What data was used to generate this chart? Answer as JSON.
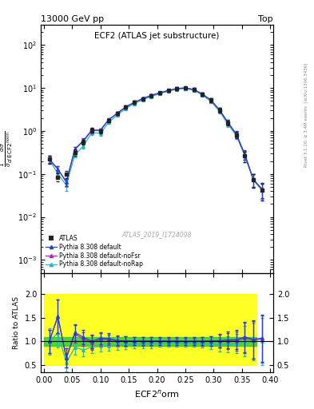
{
  "title_left": "13000 GeV pp",
  "title_right": "Top",
  "panel_title": "ECF2 (ATLAS jet substructure)",
  "xlabel": "ECF2$^n$orm",
  "ylabel_main_line1": "d",
  "ylabel_ratio": "Ratio to ATLAS",
  "watermark": "ATLAS_2019_I1724098",
  "right_label": "Rivet 3.1.10; ≥ 3.4M events  [arXiv:1306.3436]",
  "ylim_main": [
    0.0005,
    300
  ],
  "ylim_ratio": [
    0.35,
    2.45
  ],
  "xlim": [
    -0.005,
    0.405
  ],
  "x_atlas": [
    0.01,
    0.025,
    0.04,
    0.055,
    0.07,
    0.085,
    0.1,
    0.115,
    0.13,
    0.145,
    0.16,
    0.175,
    0.19,
    0.205,
    0.22,
    0.235,
    0.25,
    0.265,
    0.28,
    0.295,
    0.31,
    0.325,
    0.34,
    0.355,
    0.37,
    0.385
  ],
  "y_atlas": [
    0.22,
    0.085,
    0.1,
    0.32,
    0.55,
    1.05,
    0.98,
    1.75,
    2.55,
    3.6,
    4.6,
    5.65,
    6.7,
    7.7,
    8.7,
    9.7,
    10.0,
    9.2,
    7.2,
    5.2,
    3.1,
    1.55,
    0.82,
    0.26,
    0.072,
    0.042
  ],
  "y_atlas_err": [
    0.05,
    0.018,
    0.02,
    0.05,
    0.07,
    0.13,
    0.11,
    0.17,
    0.22,
    0.32,
    0.38,
    0.44,
    0.5,
    0.56,
    0.62,
    0.68,
    0.72,
    0.68,
    0.58,
    0.5,
    0.38,
    0.22,
    0.13,
    0.07,
    0.025,
    0.018
  ],
  "x_py_default": [
    0.01,
    0.025,
    0.04,
    0.055,
    0.07,
    0.085,
    0.1,
    0.115,
    0.13,
    0.145,
    0.16,
    0.175,
    0.19,
    0.205,
    0.22,
    0.235,
    0.25,
    0.265,
    0.28,
    0.295,
    0.31,
    0.325,
    0.34,
    0.355,
    0.37,
    0.385
  ],
  "y_py_default": [
    0.22,
    0.13,
    0.065,
    0.38,
    0.6,
    1.05,
    1.05,
    1.85,
    2.6,
    3.65,
    4.65,
    5.7,
    6.75,
    7.75,
    8.75,
    9.75,
    10.05,
    9.25,
    7.25,
    5.25,
    3.15,
    1.6,
    0.85,
    0.285,
    0.075,
    0.045
  ],
  "y_py_default_err": [
    0.04,
    0.02,
    0.012,
    0.05,
    0.07,
    0.13,
    0.11,
    0.17,
    0.22,
    0.32,
    0.38,
    0.44,
    0.5,
    0.56,
    0.62,
    0.68,
    0.72,
    0.68,
    0.58,
    0.5,
    0.38,
    0.22,
    0.13,
    0.07,
    0.025,
    0.018
  ],
  "x_py_noFsr": [
    0.01,
    0.025,
    0.04,
    0.055,
    0.07,
    0.085,
    0.1,
    0.115,
    0.13,
    0.145,
    0.16,
    0.175,
    0.19,
    0.205,
    0.22,
    0.235,
    0.25,
    0.265,
    0.28,
    0.295,
    0.31,
    0.325,
    0.34,
    0.355,
    0.37,
    0.385
  ],
  "y_py_noFsr": [
    0.22,
    0.13,
    0.065,
    0.37,
    0.58,
    1.02,
    1.02,
    1.82,
    2.57,
    3.62,
    4.62,
    5.67,
    6.72,
    7.72,
    8.72,
    9.72,
    10.02,
    9.22,
    7.22,
    5.22,
    3.12,
    1.57,
    0.83,
    0.28,
    0.074,
    0.044
  ],
  "y_py_noFsr_err": [
    0.04,
    0.02,
    0.012,
    0.05,
    0.07,
    0.13,
    0.11,
    0.17,
    0.22,
    0.32,
    0.38,
    0.44,
    0.5,
    0.56,
    0.62,
    0.68,
    0.72,
    0.68,
    0.58,
    0.5,
    0.38,
    0.22,
    0.13,
    0.07,
    0.025,
    0.018
  ],
  "x_py_noRap": [
    0.01,
    0.025,
    0.04,
    0.055,
    0.07,
    0.085,
    0.1,
    0.115,
    0.13,
    0.145,
    0.16,
    0.175,
    0.19,
    0.205,
    0.22,
    0.235,
    0.25,
    0.265,
    0.28,
    0.295,
    0.31,
    0.325,
    0.34,
    0.355,
    0.37,
    0.385
  ],
  "y_py_noRap": [
    0.22,
    0.1,
    0.055,
    0.28,
    0.45,
    0.92,
    0.88,
    1.6,
    2.35,
    3.35,
    4.35,
    5.35,
    6.35,
    7.4,
    8.4,
    9.4,
    9.7,
    8.9,
    6.9,
    4.9,
    2.9,
    1.45,
    0.78,
    0.26,
    0.072,
    0.042
  ],
  "y_py_noRap_err": [
    0.05,
    0.018,
    0.014,
    0.04,
    0.06,
    0.12,
    0.1,
    0.16,
    0.22,
    0.32,
    0.38,
    0.44,
    0.5,
    0.56,
    0.62,
    0.68,
    0.72,
    0.68,
    0.58,
    0.5,
    0.38,
    0.22,
    0.13,
    0.07,
    0.025,
    0.018
  ],
  "color_atlas": "#222222",
  "color_py_default": "#2244cc",
  "color_py_noFsr": "#bb22bb",
  "color_py_noRap": "#22bbbb",
  "ratio_default": [
    1.0,
    1.53,
    0.65,
    1.19,
    1.09,
    1.0,
    1.07,
    1.06,
    1.02,
    1.01,
    1.01,
    1.01,
    1.01,
    1.01,
    1.01,
    1.01,
    1.005,
    1.005,
    1.007,
    1.01,
    1.016,
    1.032,
    1.037,
    1.096,
    1.042,
    1.071
  ],
  "ratio_default_err": [
    0.25,
    0.35,
    0.2,
    0.18,
    0.15,
    0.15,
    0.13,
    0.11,
    0.1,
    0.1,
    0.09,
    0.09,
    0.09,
    0.08,
    0.08,
    0.08,
    0.08,
    0.08,
    0.09,
    0.1,
    0.14,
    0.17,
    0.2,
    0.32,
    0.4,
    0.5
  ],
  "ratio_noFsr": [
    1.0,
    1.53,
    0.65,
    1.16,
    1.05,
    0.97,
    1.04,
    1.04,
    1.008,
    1.006,
    1.005,
    1.004,
    1.003,
    1.003,
    1.002,
    1.002,
    1.002,
    1.002,
    1.003,
    1.004,
    1.006,
    1.013,
    1.012,
    1.077,
    1.028,
    1.048
  ],
  "ratio_noFsr_err": [
    0.25,
    0.35,
    0.2,
    0.18,
    0.15,
    0.15,
    0.13,
    0.11,
    0.1,
    0.1,
    0.09,
    0.09,
    0.09,
    0.08,
    0.08,
    0.08,
    0.08,
    0.08,
    0.09,
    0.1,
    0.14,
    0.17,
    0.2,
    0.32,
    0.4,
    0.5
  ],
  "ratio_noRap": [
    1.0,
    1.18,
    0.55,
    0.88,
    0.82,
    0.88,
    0.9,
    0.91,
    0.92,
    0.93,
    0.944,
    0.947,
    0.948,
    0.961,
    0.966,
    0.969,
    0.97,
    0.967,
    0.958,
    0.942,
    0.935,
    0.935,
    0.951,
    1.0,
    1.0,
    1.0
  ],
  "ratio_noRap_err": [
    0.28,
    0.3,
    0.18,
    0.16,
    0.13,
    0.13,
    0.12,
    0.11,
    0.1,
    0.1,
    0.09,
    0.09,
    0.09,
    0.08,
    0.08,
    0.08,
    0.08,
    0.08,
    0.09,
    0.1,
    0.14,
    0.17,
    0.2,
    0.32,
    0.4,
    0.5
  ],
  "band_x_edges": [
    0.0,
    0.015,
    0.03,
    0.045,
    0.06,
    0.075,
    0.09,
    0.105,
    0.12,
    0.135,
    0.15,
    0.165,
    0.18,
    0.195,
    0.21,
    0.225,
    0.24,
    0.255,
    0.27,
    0.285,
    0.3,
    0.315,
    0.33,
    0.345,
    0.36,
    0.375,
    0.39
  ],
  "green_band_lo": [
    0.9,
    0.9,
    0.9,
    0.9,
    0.9,
    0.9,
    0.9,
    0.9,
    0.9,
    0.9,
    0.9,
    0.9,
    0.9,
    0.9,
    0.9,
    0.9,
    0.9,
    0.9,
    0.9,
    0.9,
    0.9,
    0.9,
    0.9,
    0.9,
    0.9,
    0.9
  ],
  "green_band_hi": [
    1.1,
    1.1,
    1.1,
    1.1,
    1.1,
    1.1,
    1.1,
    1.1,
    1.1,
    1.1,
    1.1,
    1.1,
    1.1,
    1.1,
    1.1,
    1.1,
    1.1,
    1.1,
    1.1,
    1.1,
    1.1,
    1.1,
    1.1,
    1.1,
    1.1,
    1.1
  ],
  "yellow_band_lo": [
    0.5,
    0.5,
    0.5,
    0.5,
    0.5,
    0.5,
    0.5,
    0.5,
    0.5,
    0.5,
    0.5,
    0.5,
    0.5,
    0.5,
    0.5,
    0.5,
    0.5,
    0.5,
    0.5,
    0.5,
    0.5,
    0.5,
    0.5,
    0.5,
    0.5,
    0.5
  ],
  "yellow_band_hi": [
    2.0,
    2.0,
    2.0,
    2.0,
    2.0,
    2.0,
    2.0,
    2.0,
    2.0,
    2.0,
    2.0,
    2.0,
    2.0,
    2.0,
    2.0,
    2.0,
    2.0,
    2.0,
    2.0,
    2.0,
    2.0,
    2.0,
    2.0,
    2.0,
    2.0,
    2.0
  ]
}
